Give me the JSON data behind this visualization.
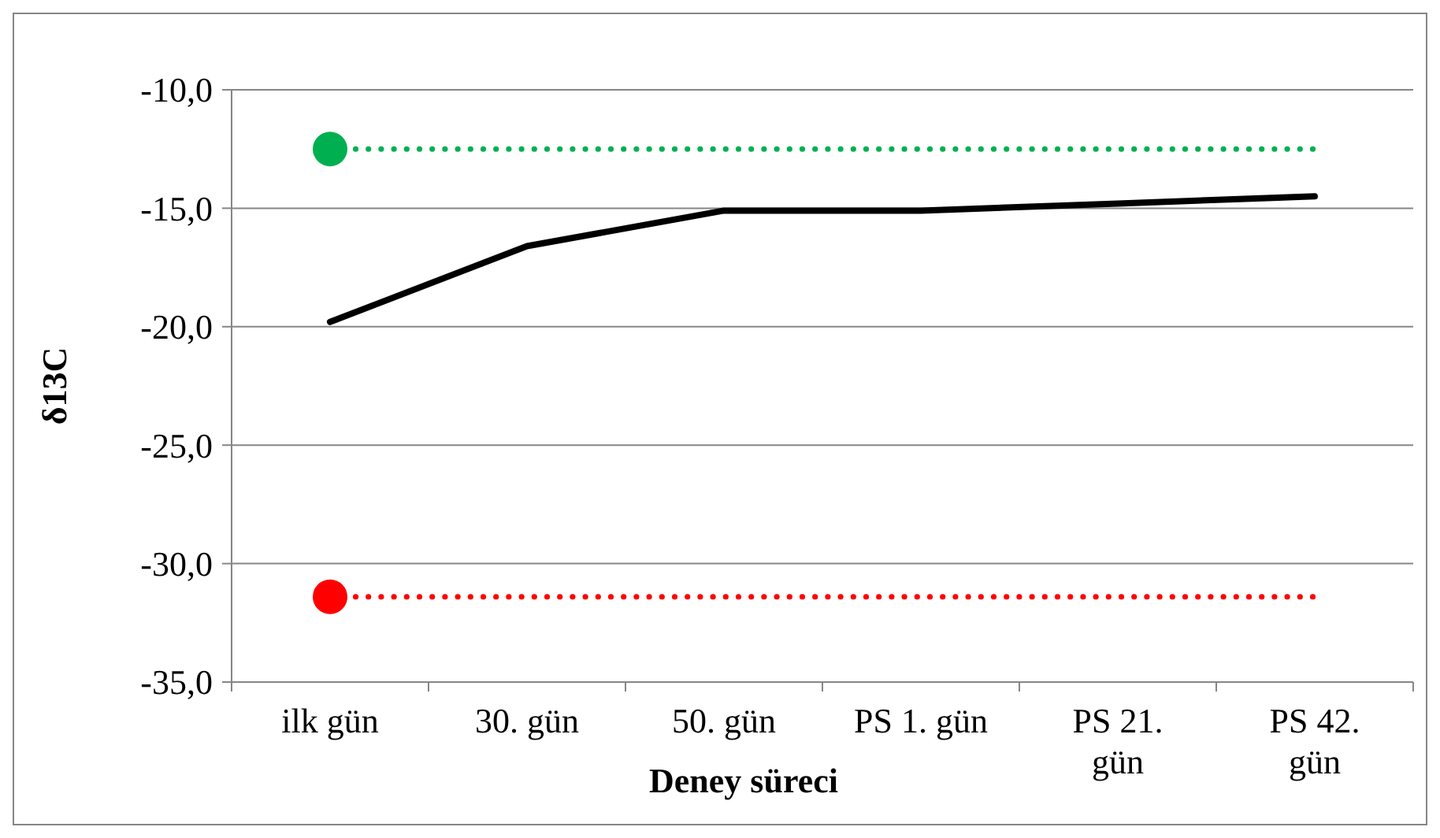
{
  "chart_data": {
    "type": "line",
    "xlabel": "Deney süreci",
    "ylabel": "δ13C",
    "categories": [
      "ilk gün",
      "30. gün",
      "50. gün",
      "PS 1. gün",
      "PS 21. gün",
      "PS 42. gün"
    ],
    "series": [
      {
        "color": "#000000",
        "values": [
          -19.8,
          -16.6,
          -15.1,
          -15.1,
          -14.8,
          -14.5
        ],
        "line_style": "solid",
        "marker": "none"
      },
      {
        "color": "#00b050",
        "values": [
          -12.5,
          -12.5,
          -12.5,
          -12.5,
          -12.5,
          -12.5
        ],
        "line_style": "dotted",
        "marker": "none"
      },
      {
        "color": "#ff0000",
        "values": [
          -31.4,
          -31.4,
          -31.4,
          -31.4,
          -31.4,
          -31.4
        ],
        "line_style": "dotted",
        "marker": "none"
      },
      {
        "type": "scatter",
        "color": "#00b050",
        "x": [
          "ilk gün"
        ],
        "values": [
          -12.5
        ],
        "marker": "circle"
      },
      {
        "type": "scatter",
        "color": "#ff0000",
        "x": [
          "ilk gün"
        ],
        "values": [
          -31.4
        ],
        "marker": "circle"
      }
    ],
    "ylim": [
      -35,
      -10
    ],
    "yticks": [
      {
        "value": -35,
        "label": "-35,0"
      },
      {
        "value": -30,
        "label": "-30,0"
      },
      {
        "value": -25,
        "label": "-25,0"
      },
      {
        "value": -20,
        "label": "-20,0"
      },
      {
        "value": -15,
        "label": "-15,0"
      },
      {
        "value": -10,
        "label": "-10,0"
      }
    ],
    "grid": "y"
  }
}
